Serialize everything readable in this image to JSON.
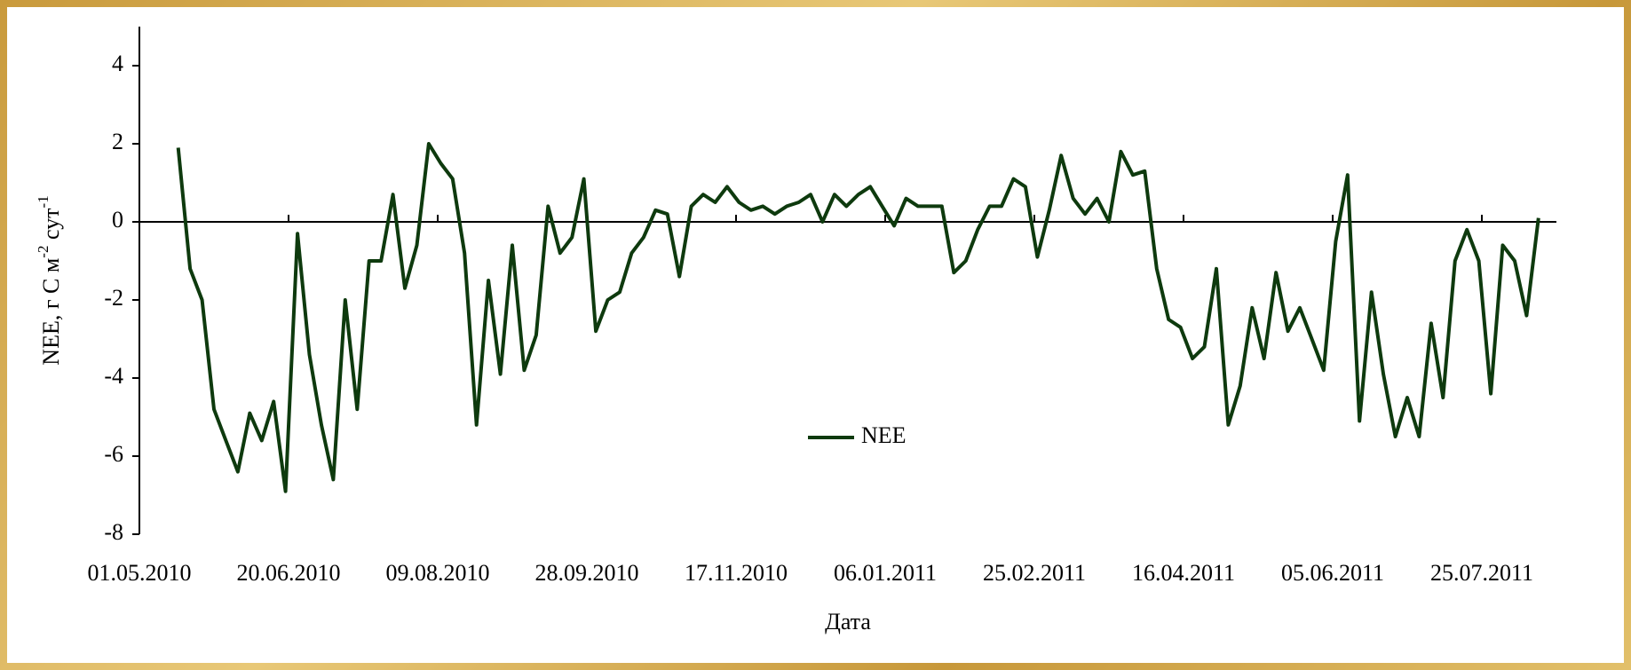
{
  "chart_data": {
    "type": "line",
    "ylabel": [
      "NEE, г С м",
      "-2",
      " сут",
      "-1"
    ],
    "xlabel": "Дата",
    "xlim": [
      "01.05.2010",
      "19.08.2011"
    ],
    "xticks": [
      "01.05.2010",
      "20.06.2010",
      "09.08.2010",
      "28.09.2010",
      "17.11.2010",
      "06.01.2011",
      "25.02.2011",
      "16.04.2011",
      "05.06.2011",
      "25.07.2011"
    ],
    "ylim": [
      -8,
      5
    ],
    "yticks": [
      -8,
      -6,
      -4,
      -2,
      0,
      2,
      4
    ],
    "legend": "center",
    "series": [
      {
        "name": "NEE",
        "color": "#0e3a0e",
        "x": [
          "14.05.2010",
          "18.05.2010",
          "22.05.2010",
          "26.05.2010",
          "30.05.2010",
          "03.06.2010",
          "07.06.2010",
          "11.06.2010",
          "15.06.2010",
          "19.06.2010",
          "23.06.2010",
          "27.06.2010",
          "01.07.2010",
          "05.07.2010",
          "09.07.2010",
          "13.07.2010",
          "17.07.2010",
          "21.07.2010",
          "25.07.2010",
          "29.07.2010",
          "02.08.2010",
          "06.08.2010",
          "10.08.2010",
          "14.08.2010",
          "18.08.2010",
          "22.08.2010",
          "26.08.2010",
          "30.08.2010",
          "03.09.2010",
          "07.09.2010",
          "11.09.2010",
          "15.09.2010",
          "19.09.2010",
          "23.09.2010",
          "27.09.2010",
          "01.10.2010",
          "05.10.2010",
          "09.10.2010",
          "13.10.2010",
          "17.10.2010",
          "21.10.2010",
          "25.10.2010",
          "29.10.2010",
          "02.11.2010",
          "06.11.2010",
          "10.11.2010",
          "14.11.2010",
          "18.11.2010",
          "22.11.2010",
          "26.11.2010",
          "30.11.2010",
          "04.12.2010",
          "08.12.2010",
          "12.12.2010",
          "16.12.2010",
          "20.12.2010",
          "24.12.2010",
          "28.12.2010",
          "01.01.2011",
          "05.01.2011",
          "09.01.2011",
          "13.01.2011",
          "17.01.2011",
          "21.01.2011",
          "25.01.2011",
          "29.01.2011",
          "02.02.2011",
          "06.02.2011",
          "10.02.2011",
          "14.02.2011",
          "18.02.2011",
          "22.02.2011",
          "26.02.2011",
          "02.03.2011",
          "06.03.2011",
          "10.03.2011",
          "14.03.2011",
          "18.03.2011",
          "22.03.2011",
          "26.03.2011",
          "30.03.2011",
          "03.04.2011",
          "07.04.2011",
          "11.04.2011",
          "15.04.2011",
          "19.04.2011",
          "23.04.2011",
          "27.04.2011",
          "01.05.2011",
          "05.05.2011",
          "09.05.2011",
          "13.05.2011",
          "17.05.2011",
          "21.05.2011",
          "25.05.2011",
          "29.05.2011",
          "02.06.2011",
          "06.06.2011",
          "10.06.2011",
          "14.06.2011",
          "18.06.2011",
          "22.06.2011",
          "26.06.2011",
          "30.06.2011",
          "04.07.2011",
          "08.07.2011",
          "12.07.2011",
          "16.07.2011",
          "20.07.2011",
          "24.07.2011",
          "28.07.2011",
          "01.08.2011",
          "05.08.2011",
          "09.08.2011",
          "13.08.2011"
        ],
        "values": [
          1.9,
          -1.2,
          -2.0,
          -4.8,
          -5.6,
          -6.4,
          -4.9,
          -5.6,
          -4.6,
          -6.9,
          -0.3,
          -3.4,
          -5.2,
          -6.6,
          -2.0,
          -4.8,
          -1.0,
          -1.0,
          0.7,
          -1.7,
          -0.6,
          2.0,
          1.5,
          1.1,
          -0.8,
          -5.2,
          -1.5,
          -3.9,
          -0.6,
          -3.8,
          -2.9,
          0.4,
          -0.8,
          -0.4,
          1.1,
          -2.8,
          -2.0,
          -1.8,
          -0.8,
          -0.4,
          0.3,
          0.2,
          -1.4,
          0.4,
          0.7,
          0.5,
          0.9,
          0.5,
          0.3,
          0.4,
          0.2,
          0.4,
          0.5,
          0.7,
          0.0,
          0.7,
          0.4,
          0.7,
          0.9,
          0.4,
          -0.1,
          0.6,
          0.4,
          0.4,
          0.4,
          -1.3,
          -1.0,
          -0.2,
          0.4,
          0.4,
          1.1,
          0.9,
          -0.9,
          0.3,
          1.7,
          0.6,
          0.2,
          0.6,
          0.0,
          1.8,
          1.2,
          1.3,
          -1.2,
          -2.5,
          -2.7,
          -3.5,
          -3.2,
          -1.2,
          -5.2,
          -4.2,
          -2.2,
          -3.5,
          -1.3,
          -2.8,
          -2.2,
          -3.0,
          -3.8,
          -0.5,
          1.2,
          -5.1,
          -1.8,
          -3.9,
          -5.5,
          -4.5,
          -5.5,
          -2.6,
          -4.5,
          -1.0,
          -0.2,
          -1.0,
          -4.4,
          -0.6,
          -1.0,
          -2.4,
          0.1
        ]
      }
    ]
  }
}
